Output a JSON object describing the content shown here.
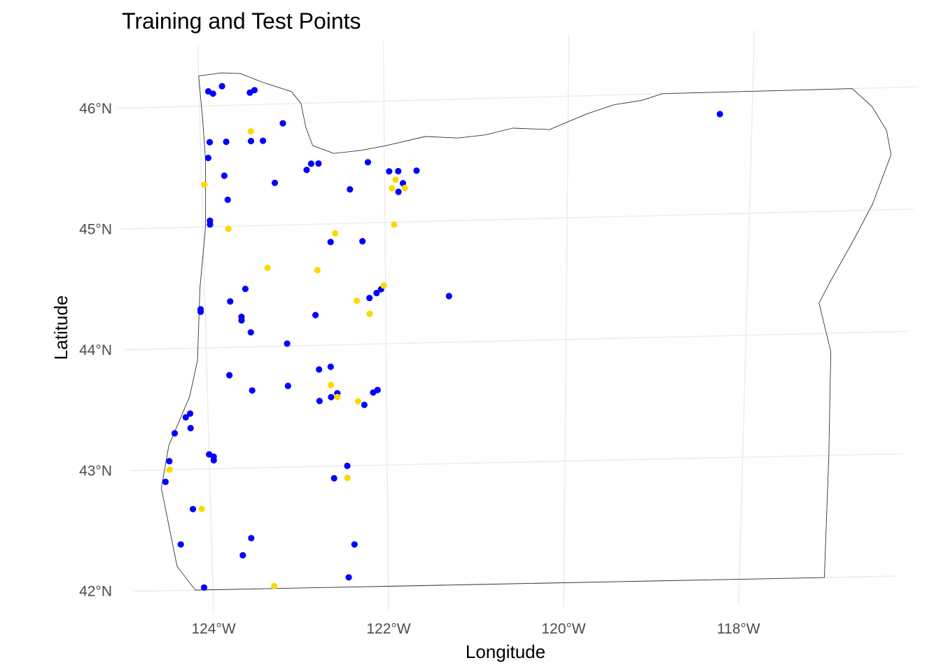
{
  "chart_data": {
    "type": "scatter",
    "title": "Training and Test Points",
    "xlabel": "Longitude",
    "ylabel": "Latitude",
    "xlim": [
      -124.9,
      -116.2
    ],
    "ylim": [
      41.8,
      46.5
    ],
    "x_ticks": [
      {
        "value": -124,
        "label": "124°W"
      },
      {
        "value": -122,
        "label": "122°W"
      },
      {
        "value": -120,
        "label": "120°W"
      },
      {
        "value": -118,
        "label": "118°W"
      }
    ],
    "y_ticks": [
      {
        "value": 42,
        "label": "42°N"
      },
      {
        "value": 43,
        "label": "43°N"
      },
      {
        "value": 44,
        "label": "44°N"
      },
      {
        "value": 45,
        "label": "45°N"
      },
      {
        "value": 46,
        "label": "46°N"
      }
    ],
    "grid": true,
    "legend": "none",
    "state_outline": [
      [
        -123.55,
        46.26
      ],
      [
        -123.3,
        46.18
      ],
      [
        -123.0,
        46.1
      ],
      [
        -122.9,
        46.0
      ],
      [
        -122.85,
        45.8
      ],
      [
        -122.78,
        45.65
      ],
      [
        -122.55,
        45.58
      ],
      [
        -122.25,
        45.6
      ],
      [
        -122.0,
        45.63
      ],
      [
        -121.55,
        45.7
      ],
      [
        -121.2,
        45.68
      ],
      [
        -120.9,
        45.7
      ],
      [
        -120.6,
        45.75
      ],
      [
        -120.2,
        45.73
      ],
      [
        -119.8,
        45.85
      ],
      [
        -119.5,
        45.92
      ],
      [
        -119.2,
        45.95
      ],
      [
        -118.98,
        46.0
      ],
      [
        -116.92,
        46.0
      ],
      [
        -116.7,
        45.85
      ],
      [
        -116.53,
        45.65
      ],
      [
        -116.47,
        45.45
      ],
      [
        -116.65,
        45.05
      ],
      [
        -116.85,
        44.75
      ],
      [
        -117.1,
        44.4
      ],
      [
        -117.2,
        44.25
      ],
      [
        -117.05,
        43.85
      ],
      [
        -117.03,
        43.0
      ],
      [
        -117.03,
        42.0
      ],
      [
        -119.0,
        42.0
      ],
      [
        -121.0,
        42.0
      ],
      [
        -122.0,
        42.0
      ],
      [
        -124.2,
        42.0
      ],
      [
        -124.4,
        42.2
      ],
      [
        -124.55,
        42.85
      ],
      [
        -124.45,
        43.2
      ],
      [
        -124.2,
        43.6
      ],
      [
        -124.1,
        43.9
      ],
      [
        -124.05,
        44.5
      ],
      [
        -123.97,
        45.0
      ],
      [
        -123.95,
        45.55
      ],
      [
        -123.97,
        45.9
      ],
      [
        -124.0,
        46.25
      ],
      [
        -123.75,
        46.27
      ],
      [
        -123.55,
        46.26
      ]
    ],
    "series": [
      {
        "color": "#0000ff",
        "points": [
          [
            -123.9,
            46.12
          ],
          [
            -123.85,
            46.1
          ],
          [
            -123.75,
            46.16
          ],
          [
            -123.45,
            46.1
          ],
          [
            -123.4,
            46.12
          ],
          [
            -123.1,
            45.84
          ],
          [
            -123.9,
            45.7
          ],
          [
            -123.72,
            45.7
          ],
          [
            -123.45,
            45.7
          ],
          [
            -123.32,
            45.7
          ],
          [
            -123.92,
            45.57
          ],
          [
            -123.75,
            45.42
          ],
          [
            -123.2,
            45.35
          ],
          [
            -123.72,
            45.22
          ],
          [
            -123.92,
            45.05
          ],
          [
            -123.92,
            45.02
          ],
          [
            -122.85,
            45.45
          ],
          [
            -122.8,
            45.5
          ],
          [
            -122.72,
            45.5
          ],
          [
            -122.18,
            45.5
          ],
          [
            -122.38,
            45.28
          ],
          [
            -121.95,
            45.42
          ],
          [
            -121.85,
            45.42
          ],
          [
            -121.65,
            45.42
          ],
          [
            -121.8,
            45.32
          ],
          [
            -121.85,
            45.25
          ],
          [
            -122.6,
            44.85
          ],
          [
            -122.25,
            44.85
          ],
          [
            -123.55,
            44.48
          ],
          [
            -123.72,
            44.38
          ],
          [
            -124.05,
            44.32
          ],
          [
            -124.05,
            44.3
          ],
          [
            -123.6,
            44.25
          ],
          [
            -123.6,
            44.22
          ],
          [
            -123.5,
            44.12
          ],
          [
            -122.78,
            44.25
          ],
          [
            -122.18,
            44.38
          ],
          [
            -122.1,
            44.42
          ],
          [
            -122.05,
            44.45
          ],
          [
            -121.3,
            44.38
          ],
          [
            -123.1,
            44.02
          ],
          [
            -123.75,
            43.77
          ],
          [
            -122.75,
            43.8
          ],
          [
            -122.62,
            43.82
          ],
          [
            -123.1,
            43.67
          ],
          [
            -123.5,
            43.64
          ],
          [
            -122.55,
            43.6
          ],
          [
            -122.62,
            43.57
          ],
          [
            -122.75,
            43.54
          ],
          [
            -122.25,
            43.5
          ],
          [
            -122.1,
            43.62
          ],
          [
            -122.15,
            43.6
          ],
          [
            -124.25,
            43.43
          ],
          [
            -124.2,
            43.46
          ],
          [
            -124.2,
            43.34
          ],
          [
            -124.38,
            43.3
          ],
          [
            -124.0,
            43.12
          ],
          [
            -123.95,
            43.1
          ],
          [
            -123.95,
            43.07
          ],
          [
            -124.45,
            43.07
          ],
          [
            -124.5,
            42.9
          ],
          [
            -122.45,
            43.0
          ],
          [
            -122.6,
            42.9
          ],
          [
            -124.2,
            42.67
          ],
          [
            -124.35,
            42.38
          ],
          [
            -123.55,
            42.42
          ],
          [
            -123.65,
            42.28
          ],
          [
            -122.38,
            42.35
          ],
          [
            -122.45,
            42.08
          ],
          [
            -124.1,
            42.02
          ],
          [
            -118.35,
            45.82
          ]
        ]
      },
      {
        "color": "#ffd700",
        "points": [
          [
            -123.45,
            45.78
          ],
          [
            -123.97,
            45.35
          ],
          [
            -123.72,
            44.98
          ],
          [
            -122.55,
            44.92
          ],
          [
            -121.88,
            45.35
          ],
          [
            -121.92,
            45.28
          ],
          [
            -121.78,
            45.28
          ],
          [
            -121.9,
            44.98
          ],
          [
            -123.3,
            44.65
          ],
          [
            -122.75,
            44.62
          ],
          [
            -122.02,
            44.48
          ],
          [
            -122.32,
            44.36
          ],
          [
            -122.18,
            44.25
          ],
          [
            -122.62,
            43.67
          ],
          [
            -122.55,
            43.57
          ],
          [
            -122.32,
            43.53
          ],
          [
            -124.45,
            43.0
          ],
          [
            -122.45,
            42.9
          ],
          [
            -124.1,
            42.67
          ],
          [
            -123.3,
            42.02
          ]
        ]
      }
    ]
  }
}
